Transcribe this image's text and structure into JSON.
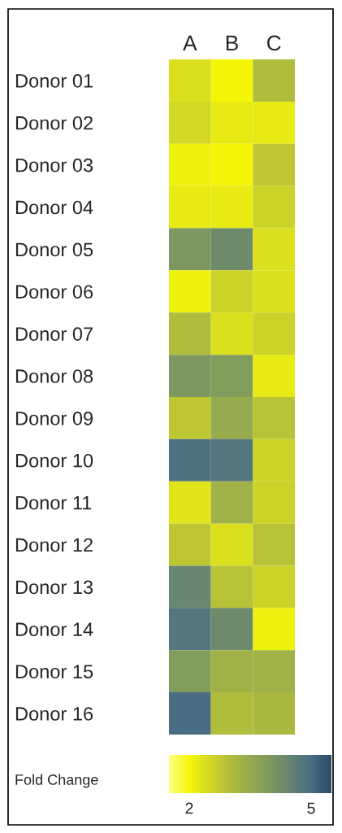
{
  "chart_data": {
    "type": "heatmap",
    "categories": [
      "A",
      "B",
      "C"
    ],
    "y_categories": [
      "Donor 01",
      "Donor 02",
      "Donor 03",
      "Donor 04",
      "Donor 05",
      "Donor 06",
      "Donor 07",
      "Donor 08",
      "Donor 09",
      "Donor 10",
      "Donor 11",
      "Donor 12",
      "Donor 13",
      "Donor 14",
      "Donor 15",
      "Donor 16"
    ],
    "cells": [
      [
        2.4,
        2.0,
        3.0
      ],
      [
        2.5,
        2.2,
        2.2
      ],
      [
        2.1,
        2.0,
        2.8
      ],
      [
        2.2,
        2.2,
        2.6
      ],
      [
        4.0,
        4.3,
        2.4
      ],
      [
        2.1,
        2.6,
        2.4
      ],
      [
        3.0,
        2.4,
        2.6
      ],
      [
        4.0,
        3.9,
        2.2
      ],
      [
        2.8,
        3.5,
        2.9
      ],
      [
        4.9,
        4.8,
        2.6
      ],
      [
        2.3,
        3.3,
        2.6
      ],
      [
        2.8,
        2.4,
        2.9
      ],
      [
        4.4,
        2.9,
        2.6
      ],
      [
        4.8,
        4.3,
        2.1
      ],
      [
        3.9,
        3.3,
        3.3
      ],
      [
        5.0,
        3.0,
        3.1
      ]
    ],
    "clabel": "Fold Change",
    "clim": [
      1.5,
      5.5
    ],
    "cticks": [
      2,
      5
    ]
  }
}
